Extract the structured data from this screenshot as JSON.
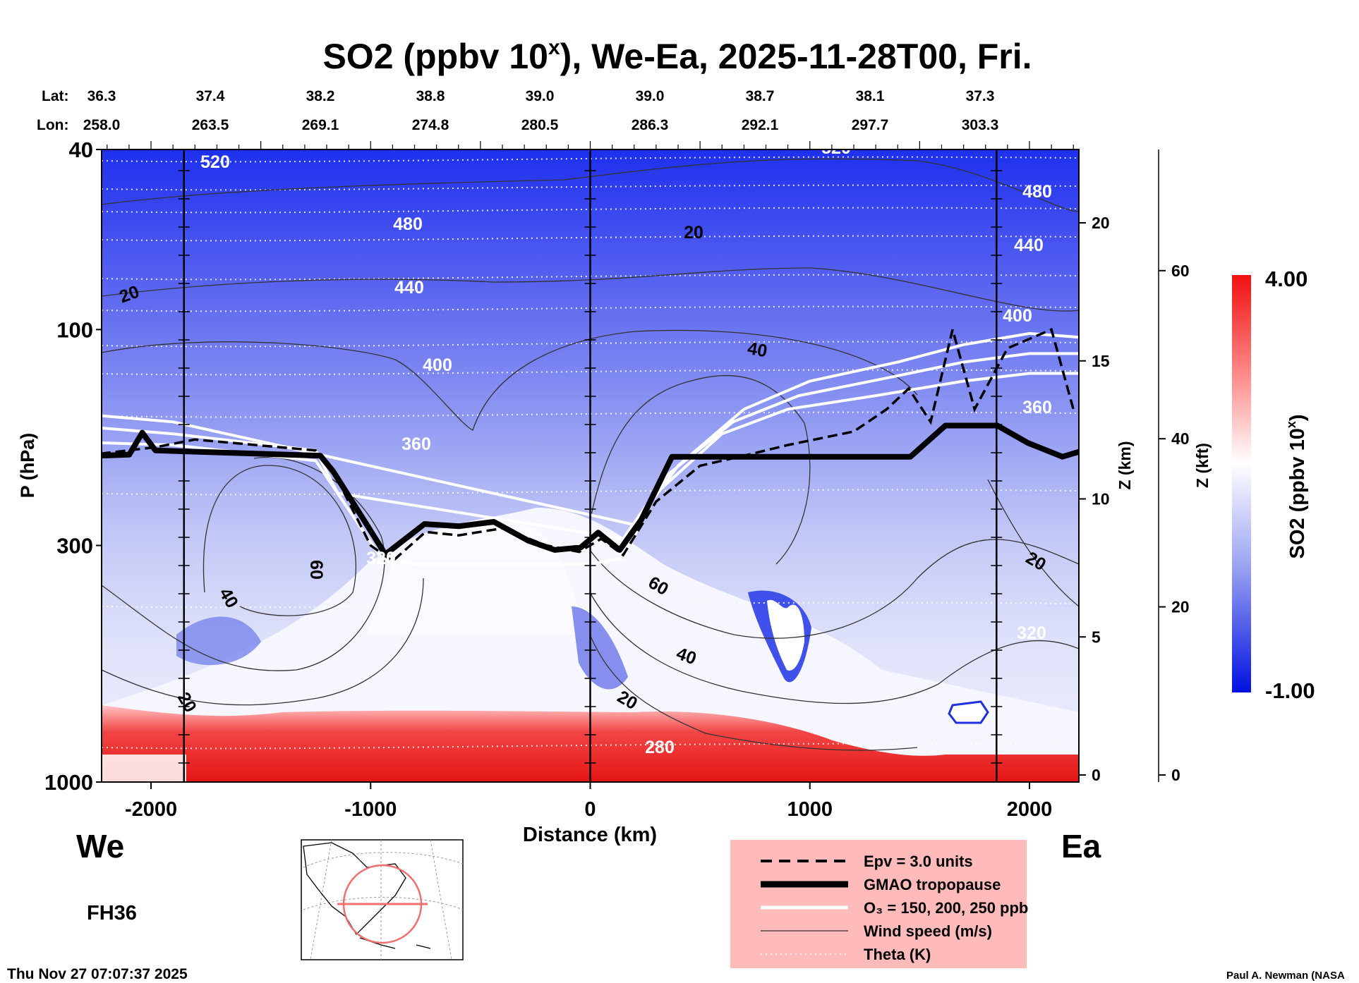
{
  "chart_data": {
    "type": "heatmap",
    "title": "SO2 (ppbv 10",
    "title_sup": "x",
    "title_rest": "), We-Ea, 2025-11-28T00, Fri.",
    "xlabel": "Distance (km)",
    "ylabel": "P (hPa)",
    "y2label": "Z (km)",
    "y3label": "Z (kft)",
    "xlim": [
      -2225,
      2225
    ],
    "ylim_hpa": [
      1000,
      40
    ],
    "y_scale": "log",
    "x_ticks": [
      {
        "v": -2000,
        "label": "-2000"
      },
      {
        "v": -1000,
        "label": "-1000"
      },
      {
        "v": 0,
        "label": "0"
      },
      {
        "v": 1000,
        "label": "1000"
      },
      {
        "v": 2000,
        "label": "2000"
      }
    ],
    "p_ticks": [
      {
        "v": 40,
        "label": "40"
      },
      {
        "v": 100,
        "label": "100"
      },
      {
        "v": 300,
        "label": "300"
      },
      {
        "v": 1000,
        "label": "1000"
      }
    ],
    "z_km_ticks": [
      {
        "v": 0,
        "label": "0"
      },
      {
        "v": 5,
        "label": "5"
      },
      {
        "v": 10,
        "label": "10"
      },
      {
        "v": 15,
        "label": "15"
      },
      {
        "v": 20,
        "label": "20"
      }
    ],
    "z_kft_ticks": [
      {
        "v": 0,
        "label": "0"
      },
      {
        "v": 20,
        "label": "20"
      },
      {
        "v": 40,
        "label": "40"
      },
      {
        "v": 60,
        "label": "60"
      }
    ],
    "vertical_lines_km": [
      -1850,
      0,
      1850
    ],
    "lat_label": "Lat:",
    "lon_label": "Lon:",
    "lat": [
      "36.3",
      "37.4",
      "38.2",
      "38.8",
      "39.0",
      "39.0",
      "38.7",
      "38.1",
      "37.3"
    ],
    "lon": [
      "258.0",
      "263.5",
      "269.1",
      "274.8",
      "280.5",
      "286.3",
      "292.1",
      "297.7",
      "303.3"
    ],
    "colorbar": {
      "label": "SO2 (ppbv 10",
      "label_sup": "x",
      "label_end": ")",
      "max": 4.0,
      "min": -1.0,
      "max_label": "4.00",
      "min_label": "-1.00",
      "colors": [
        "#0010e0",
        "#8c96f0",
        "#ffffff",
        "#ff9090",
        "#f01010"
      ]
    },
    "tropopause": {
      "km": [
        -2229,
        -2099,
        -2040,
        -1980,
        -1229,
        -1170,
        -1032,
        -933,
        -755,
        -597,
        -439,
        -281,
        -162,
        -43,
        36,
        134,
        233,
        372,
        1458,
        1617,
        1854,
        1992,
        2150,
        2229
      ],
      "hpa": [
        190,
        189,
        169,
        185,
        190,
        206,
        263,
        314,
        269,
        272,
        266,
        293,
        307,
        303,
        281,
        307,
        263,
        191,
        191,
        163,
        163,
        178,
        191,
        186
      ]
    },
    "epv_3": {
      "km": [
        -2229,
        -1980,
        -1800,
        -1250,
        -1150,
        -1000,
        -900,
        -750,
        -600,
        -400,
        -200,
        -50,
        50,
        150,
        300,
        500,
        700,
        900,
        1200,
        1350,
        1450,
        1550,
        1650,
        1750,
        1900,
        2100,
        2200
      ],
      "hpa": [
        188,
        182,
        175,
        185,
        215,
        300,
        325,
        280,
        285,
        275,
        300,
        310,
        290,
        315,
        240,
        200,
        190,
        180,
        168,
        150,
        135,
        160,
        100,
        150,
        110,
        100,
        150
      ]
    },
    "o3_contours": [
      {
        "label": "150 ppb",
        "km": [
          -2229,
          -1900,
          -1250,
          -1100,
          -950,
          -800,
          0,
          150,
          300,
          600,
          900,
          1300,
          1700,
          2000,
          2229
        ],
        "hpa": [
          178,
          180,
          195,
          250,
          320,
          330,
          330,
          320,
          230,
          170,
          150,
          140,
          130,
          125,
          125
        ]
      },
      {
        "label": "200 ppb",
        "km": [
          -2229,
          -1900,
          -1250,
          -1150,
          150,
          350,
          650,
          950,
          1350,
          1700,
          2000,
          2229
        ],
        "hpa": [
          165,
          170,
          185,
          230,
          290,
          210,
          160,
          140,
          128,
          118,
          113,
          113
        ]
      },
      {
        "label": "250 ppb",
        "km": [
          -2229,
          -1900,
          200,
          400,
          700,
          1000,
          1400,
          1700,
          2000,
          2229
        ],
        "hpa": [
          155,
          160,
          270,
          200,
          150,
          130,
          118,
          108,
          102,
          104
        ]
      }
    ],
    "theta_labels": [
      "520",
      "480",
      "440",
      "400",
      "360",
      "320",
      "280",
      "520",
      "480",
      "440",
      "400",
      "360",
      "320"
    ],
    "wind_labels": [
      "20",
      "40",
      "60",
      "20",
      "20",
      "40",
      "60",
      "40",
      "20",
      "20"
    ]
  },
  "labels": {
    "west": "We",
    "east": "Ea",
    "forecast_hour": "FH36",
    "timestamp": "Thu Nov 27 07:07:37 2025",
    "credit": "Paul A. Newman (NASA"
  },
  "legend": {
    "items": [
      {
        "label": "Epv = 3.0 units",
        "style": "dashed"
      },
      {
        "label": "GMAO tropopause",
        "style": "thick"
      },
      {
        "label": "O₃ = 150, 200, 250 ppb",
        "style": "white"
      },
      {
        "label": "Wind speed (m/s)",
        "style": "thin"
      },
      {
        "label": "Theta (K)",
        "style": "dotted"
      }
    ],
    "bg": "#ffbaba"
  }
}
